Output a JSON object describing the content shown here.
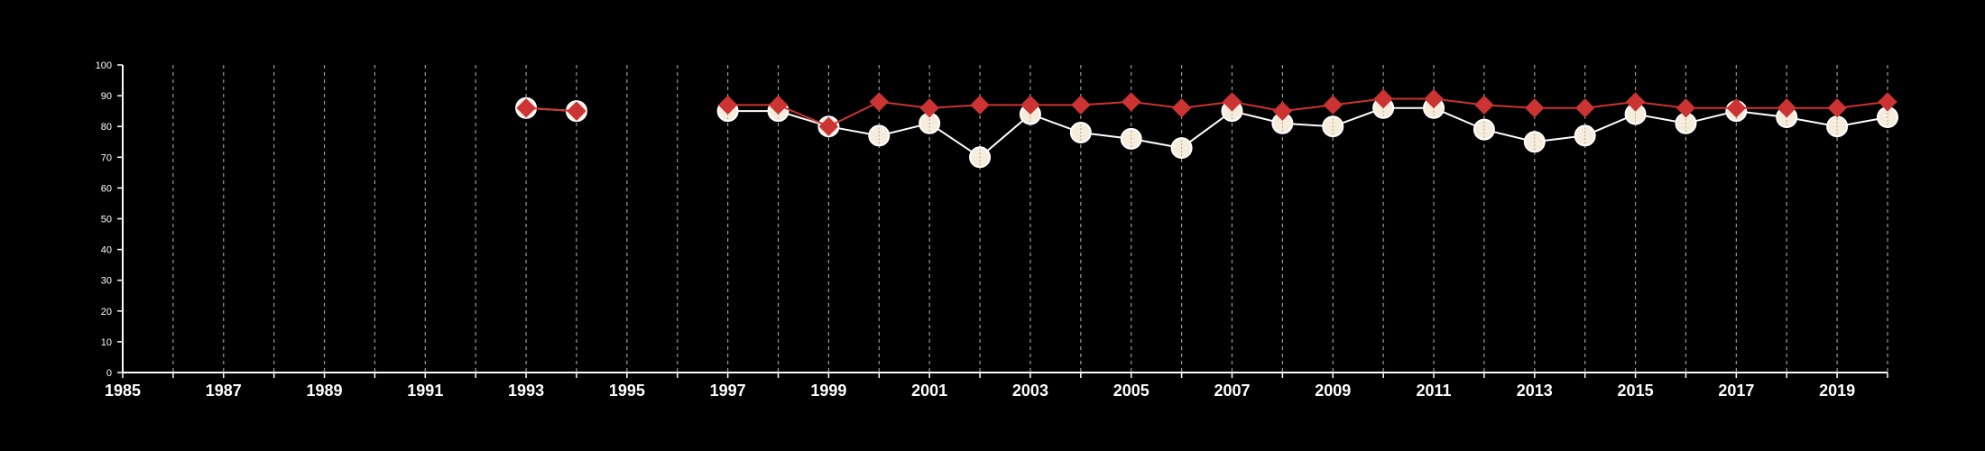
{
  "chart_data": {
    "type": "line",
    "title": "",
    "xlabel": "",
    "ylabel": "",
    "xlim": [
      1985,
      2020
    ],
    "ylim": [
      0,
      100
    ],
    "x_ticks": [
      1985,
      1987,
      1989,
      1991,
      1993,
      1995,
      1997,
      1999,
      2001,
      2003,
      2005,
      2007,
      2009,
      2011,
      2013,
      2015,
      2017,
      2019
    ],
    "x_tick_labels": [
      "1985",
      "1987",
      "1989",
      "1991",
      "1993",
      "1995",
      "1997",
      "1999",
      "2001",
      "2003",
      "2005",
      "2007",
      "2009",
      "2011",
      "2013",
      "2015",
      "2017",
      "2019"
    ],
    "y_ticks": [
      0,
      10,
      20,
      30,
      40,
      50,
      60,
      70,
      80,
      90,
      100
    ],
    "y_tick_labels": [
      "0",
      "10",
      "20",
      "30",
      "40",
      "50",
      "60",
      "70",
      "80",
      "90",
      "100"
    ],
    "grid": "vertical dashed lines at every year",
    "legend": "none",
    "background_color": "#000000",
    "series": [
      {
        "marker": "circle",
        "color": "#ffffff",
        "marker_fill": "#f6ecdc",
        "points": [
          {
            "x": 1993,
            "y": 86
          },
          {
            "x": 1994,
            "y": 85
          },
          {
            "x": 1997,
            "y": 85
          },
          {
            "x": 1998,
            "y": 85
          },
          {
            "x": 1999,
            "y": 80
          },
          {
            "x": 2000,
            "y": 77
          },
          {
            "x": 2001,
            "y": 81
          },
          {
            "x": 2002,
            "y": 70
          },
          {
            "x": 2003,
            "y": 84
          },
          {
            "x": 2004,
            "y": 78
          },
          {
            "x": 2005,
            "y": 76
          },
          {
            "x": 2006,
            "y": 73
          },
          {
            "x": 2007,
            "y": 85
          },
          {
            "x": 2008,
            "y": 81
          },
          {
            "x": 2009,
            "y": 80
          },
          {
            "x": 2010,
            "y": 86
          },
          {
            "x": 2011,
            "y": 86
          },
          {
            "x": 2012,
            "y": 79
          },
          {
            "x": 2013,
            "y": 75
          },
          {
            "x": 2014,
            "y": 77
          },
          {
            "x": 2015,
            "y": 84
          },
          {
            "x": 2016,
            "y": 81
          },
          {
            "x": 2017,
            "y": 85
          },
          {
            "x": 2018,
            "y": 83
          },
          {
            "x": 2019,
            "y": 80
          },
          {
            "x": 2020,
            "y": 83
          }
        ]
      },
      {
        "marker": "diamond",
        "color": "#cc3333",
        "marker_fill": "#cc3333",
        "points": [
          {
            "x": 1993,
            "y": 86
          },
          {
            "x": 1994,
            "y": 85
          },
          {
            "x": 1997,
            "y": 87
          },
          {
            "x": 1998,
            "y": 87
          },
          {
            "x": 1999,
            "y": 80
          },
          {
            "x": 2000,
            "y": 88
          },
          {
            "x": 2001,
            "y": 86
          },
          {
            "x": 2002,
            "y": 87
          },
          {
            "x": 2003,
            "y": 87
          },
          {
            "x": 2004,
            "y": 87
          },
          {
            "x": 2005,
            "y": 88
          },
          {
            "x": 2006,
            "y": 86
          },
          {
            "x": 2007,
            "y": 88
          },
          {
            "x": 2008,
            "y": 85
          },
          {
            "x": 2009,
            "y": 87
          },
          {
            "x": 2010,
            "y": 89
          },
          {
            "x": 2011,
            "y": 89
          },
          {
            "x": 2012,
            "y": 87
          },
          {
            "x": 2013,
            "y": 86
          },
          {
            "x": 2014,
            "y": 86
          },
          {
            "x": 2015,
            "y": 88
          },
          {
            "x": 2016,
            "y": 86
          },
          {
            "x": 2017,
            "y": 86
          },
          {
            "x": 2018,
            "y": 86
          },
          {
            "x": 2019,
            "y": 86
          },
          {
            "x": 2020,
            "y": 88
          }
        ]
      }
    ]
  }
}
